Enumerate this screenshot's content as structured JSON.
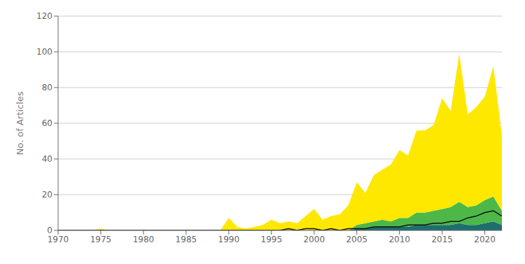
{
  "chart_data": {
    "type": "area",
    "stacked": true,
    "grid": "y",
    "ylabel": "No. of Articles",
    "x": [
      1970,
      1971,
      1972,
      1973,
      1974,
      1975,
      1976,
      1977,
      1978,
      1979,
      1980,
      1981,
      1982,
      1983,
      1984,
      1985,
      1986,
      1987,
      1988,
      1989,
      1990,
      1991,
      1992,
      1993,
      1994,
      1995,
      1996,
      1997,
      1998,
      1999,
      2000,
      2001,
      2002,
      2003,
      2004,
      2005,
      2006,
      2007,
      2008,
      2009,
      2010,
      2011,
      2012,
      2013,
      2014,
      2015,
      2016,
      2017,
      2018,
      2019,
      2020,
      2021,
      2022
    ],
    "series": [
      {
        "type": "area",
        "color": "#1E6E6E",
        "values": [
          0,
          0,
          0,
          0,
          0,
          0,
          0,
          0,
          0,
          0,
          0,
          0,
          0,
          0,
          0,
          0,
          0,
          0,
          0,
          0,
          0,
          0,
          0,
          0,
          0,
          0,
          0,
          0,
          0,
          0,
          0,
          0,
          0,
          0,
          0,
          1,
          1,
          2,
          2,
          2,
          2,
          2,
          3,
          3,
          3,
          3,
          3,
          4,
          3,
          3,
          4,
          5,
          3
        ]
      },
      {
        "type": "area",
        "color": "#4DB848",
        "values": [
          0,
          0,
          0,
          0,
          0,
          0,
          0,
          0,
          0,
          0,
          0,
          0,
          0,
          0,
          0,
          0,
          0,
          0,
          0,
          0,
          0,
          0,
          0,
          0,
          0,
          0,
          0,
          0,
          0,
          0,
          0,
          0,
          0,
          0,
          0,
          2,
          3,
          3,
          4,
          3,
          5,
          5,
          7,
          7,
          8,
          9,
          10,
          12,
          10,
          11,
          13,
          14,
          8
        ]
      },
      {
        "type": "area",
        "color": "#FFE800",
        "values": [
          0,
          0,
          0,
          0,
          0,
          1,
          0,
          0,
          0,
          0,
          0,
          0,
          0,
          0,
          0,
          0,
          0,
          0,
          0,
          0,
          7,
          2,
          1,
          2,
          3,
          6,
          4,
          5,
          4,
          8,
          12,
          6,
          8,
          9,
          14,
          24,
          17,
          26,
          28,
          32,
          38,
          35,
          46,
          46,
          48,
          62,
          54,
          83,
          52,
          55,
          58,
          73,
          42
        ]
      },
      {
        "type": "line",
        "color": "#111111",
        "values": [
          0,
          0,
          0,
          0,
          0,
          0,
          0,
          0,
          0,
          0,
          0,
          0,
          0,
          0,
          0,
          0,
          0,
          0,
          0,
          0,
          0,
          0,
          0,
          0,
          0,
          0,
          0,
          1,
          0,
          1,
          1,
          0,
          1,
          0,
          1,
          1,
          1,
          2,
          2,
          2,
          2,
          3,
          3,
          3,
          4,
          4,
          5,
          5,
          7,
          8,
          10,
          11,
          8
        ]
      }
    ],
    "xlim": [
      1970,
      2022
    ],
    "xticks": [
      1970,
      1975,
      1980,
      1985,
      1990,
      1995,
      2000,
      2005,
      2010,
      2015,
      2020
    ],
    "ylim": [
      0,
      120
    ],
    "yticks": [
      0,
      20,
      40,
      60,
      80,
      100,
      120
    ]
  }
}
